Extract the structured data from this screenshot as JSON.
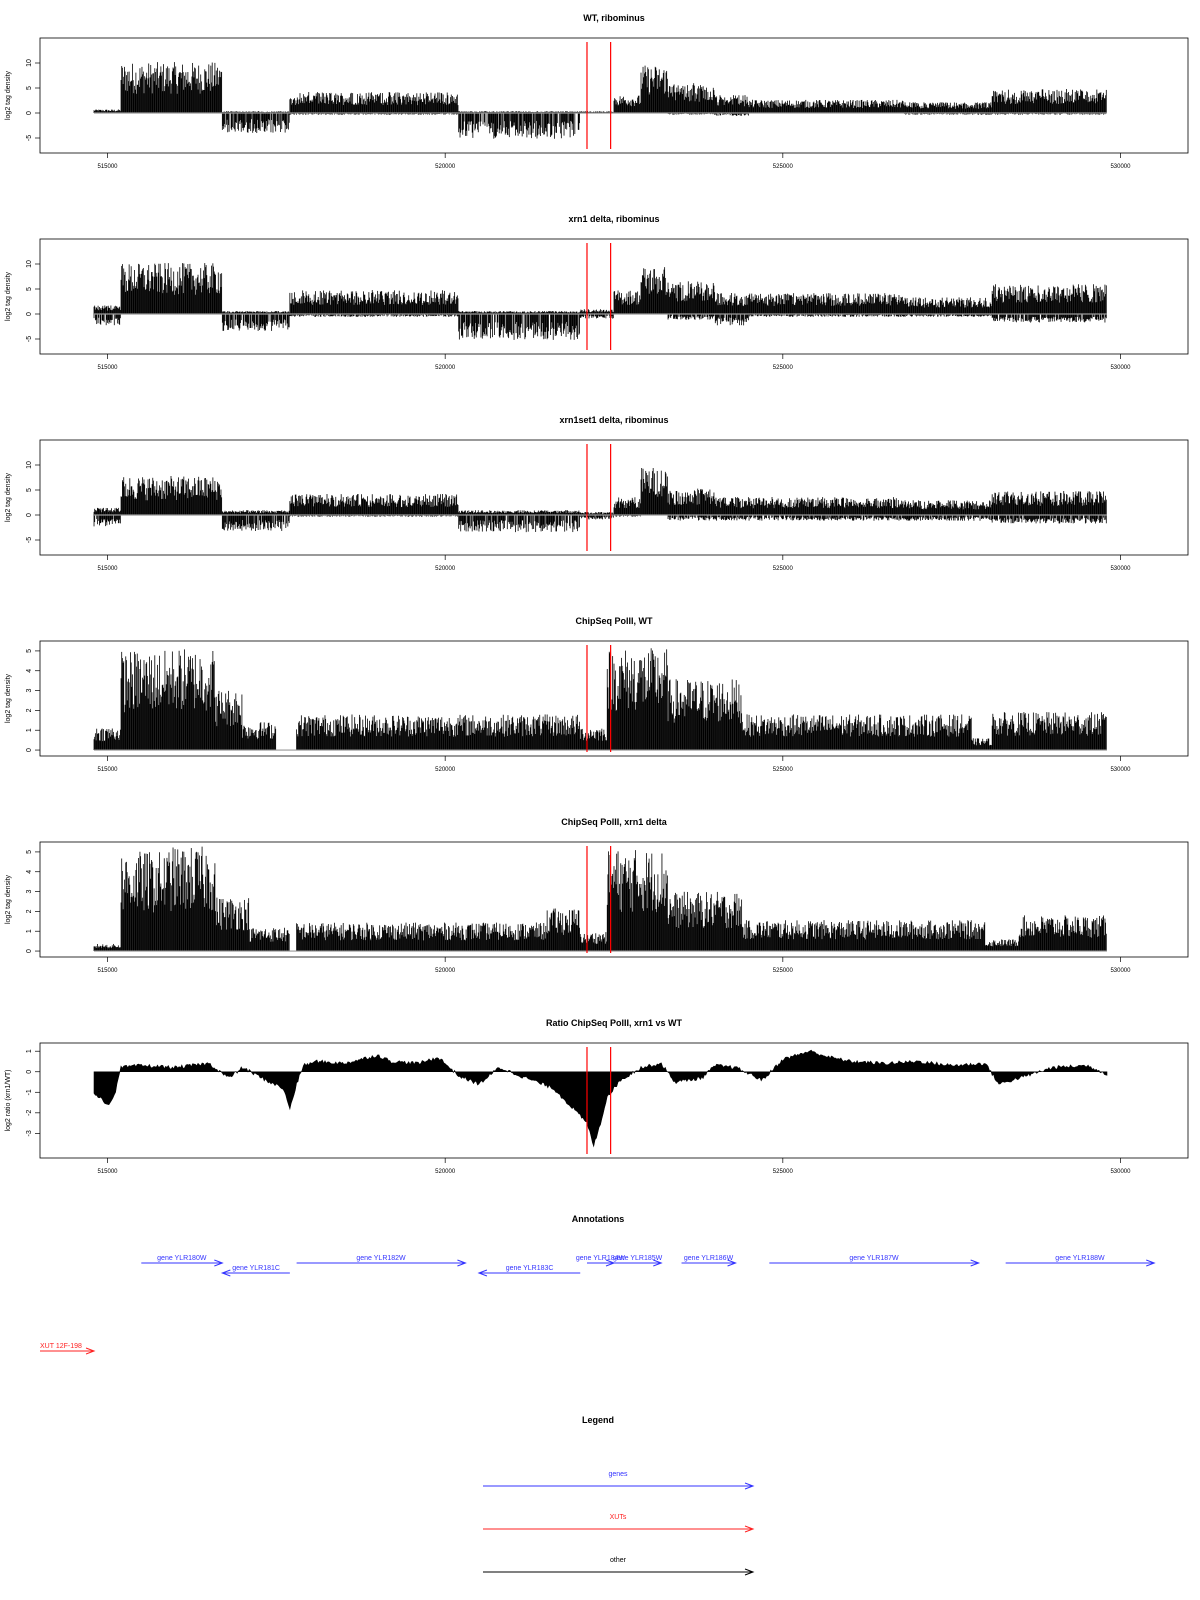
{
  "chart_data": [
    {
      "type": "bar",
      "title": "WT, ribominus",
      "ylabel": "log2 tag density",
      "xlim": [
        514000,
        531000
      ],
      "ylim": [
        -8,
        15
      ],
      "yticks": [
        -5,
        0,
        5,
        10
      ],
      "xticks": [
        515000,
        520000,
        525000,
        530000
      ],
      "xtick_labels": [
        "515000",
        "520000",
        "525000",
        "530000"
      ],
      "red_lines": [
        522100,
        522450
      ],
      "profile": [
        {
          "start": 514800,
          "end": 515200,
          "pos": 0.6,
          "neg": 0
        },
        {
          "start": 515200,
          "end": 516700,
          "pos": 8.5,
          "neg": 0
        },
        {
          "start": 516700,
          "end": 517700,
          "pos": 0.3,
          "neg": -3.5
        },
        {
          "start": 517700,
          "end": 520200,
          "pos": 3.5,
          "neg": -0.3
        },
        {
          "start": 520200,
          "end": 522000,
          "pos": 0.3,
          "neg": -4.5
        },
        {
          "start": 522000,
          "end": 522500,
          "pos": 0.3,
          "neg": 0
        },
        {
          "start": 522500,
          "end": 522900,
          "pos": 3,
          "neg": 0
        },
        {
          "start": 522900,
          "end": 523300,
          "pos": 8,
          "neg": 0
        },
        {
          "start": 523300,
          "end": 524000,
          "pos": 5,
          "neg": -0.3
        },
        {
          "start": 524000,
          "end": 524500,
          "pos": 3,
          "neg": -0.5
        },
        {
          "start": 524500,
          "end": 526800,
          "pos": 2.2,
          "neg": 0
        },
        {
          "start": 526800,
          "end": 528100,
          "pos": 1.8,
          "neg": -0.3
        },
        {
          "start": 528100,
          "end": 529800,
          "pos": 4,
          "neg": -0.3
        }
      ]
    },
    {
      "type": "bar",
      "title": "xrn1 delta, ribominus",
      "ylabel": "log2 tag density",
      "xlim": [
        514000,
        531000
      ],
      "ylim": [
        -8,
        15
      ],
      "yticks": [
        -5,
        0,
        5,
        10
      ],
      "xticks": [
        515000,
        520000,
        525000,
        530000
      ],
      "xtick_labels": [
        "515000",
        "520000",
        "525000",
        "530000"
      ],
      "red_lines": [
        522100,
        522450
      ],
      "profile": [
        {
          "start": 514800,
          "end": 515200,
          "pos": 1.5,
          "neg": -2
        },
        {
          "start": 515200,
          "end": 516700,
          "pos": 8.5,
          "neg": 0
        },
        {
          "start": 516700,
          "end": 517700,
          "pos": 0.5,
          "neg": -3
        },
        {
          "start": 517700,
          "end": 520200,
          "pos": 4,
          "neg": -0.5
        },
        {
          "start": 520200,
          "end": 522000,
          "pos": 0.5,
          "neg": -4.5
        },
        {
          "start": 522000,
          "end": 522500,
          "pos": 0.8,
          "neg": -0.8
        },
        {
          "start": 522500,
          "end": 522900,
          "pos": 4,
          "neg": 0
        },
        {
          "start": 522900,
          "end": 523300,
          "pos": 8,
          "neg": 0
        },
        {
          "start": 523300,
          "end": 524000,
          "pos": 5.5,
          "neg": -1
        },
        {
          "start": 524000,
          "end": 524500,
          "pos": 3.5,
          "neg": -2
        },
        {
          "start": 524500,
          "end": 526800,
          "pos": 3.5,
          "neg": -0.5
        },
        {
          "start": 526800,
          "end": 528100,
          "pos": 2.8,
          "neg": -0.5
        },
        {
          "start": 528100,
          "end": 529800,
          "pos": 5,
          "neg": -1.5
        }
      ]
    },
    {
      "type": "bar",
      "title": "xrn1set1 delta, ribominus",
      "ylabel": "log2 tag density",
      "xlim": [
        514000,
        531000
      ],
      "ylim": [
        -8,
        15
      ],
      "yticks": [
        -5,
        0,
        5,
        10
      ],
      "xticks": [
        515000,
        520000,
        525000,
        530000
      ],
      "xtick_labels": [
        "515000",
        "520000",
        "525000",
        "530000"
      ],
      "red_lines": [
        522100,
        522450
      ],
      "profile": [
        {
          "start": 514800,
          "end": 515200,
          "pos": 1.2,
          "neg": -2
        },
        {
          "start": 515200,
          "end": 516700,
          "pos": 6.5,
          "neg": 0
        },
        {
          "start": 516700,
          "end": 517700,
          "pos": 0.8,
          "neg": -2.8
        },
        {
          "start": 517700,
          "end": 520200,
          "pos": 3.5,
          "neg": -0.3
        },
        {
          "start": 520200,
          "end": 522000,
          "pos": 0.8,
          "neg": -3
        },
        {
          "start": 522000,
          "end": 522500,
          "pos": 0.5,
          "neg": -0.8
        },
        {
          "start": 522500,
          "end": 522900,
          "pos": 3,
          "neg": -0.3
        },
        {
          "start": 522900,
          "end": 523300,
          "pos": 8,
          "neg": 0
        },
        {
          "start": 523300,
          "end": 524000,
          "pos": 4.5,
          "neg": -1
        },
        {
          "start": 524000,
          "end": 524500,
          "pos": 3,
          "neg": -1
        },
        {
          "start": 524500,
          "end": 526800,
          "pos": 3,
          "neg": -1
        },
        {
          "start": 526800,
          "end": 528100,
          "pos": 2.5,
          "neg": -1
        },
        {
          "start": 528100,
          "end": 529800,
          "pos": 4,
          "neg": -1.5
        }
      ]
    },
    {
      "type": "bar",
      "title": "ChipSeq PolII, WT",
      "ylabel": "log2 tag density",
      "xlim": [
        514000,
        531000
      ],
      "ylim": [
        -0.3,
        5.5
      ],
      "yticks": [
        0,
        1,
        2,
        3,
        4,
        5
      ],
      "xticks": [
        515000,
        520000,
        525000,
        530000
      ],
      "xtick_labels": [
        "515000",
        "520000",
        "525000",
        "530000"
      ],
      "red_lines": [
        522100,
        522450
      ],
      "profile": [
        {
          "start": 514800,
          "end": 515200,
          "pos": 1,
          "neg": 0
        },
        {
          "start": 515200,
          "end": 515900,
          "pos": 4.2,
          "neg": 0
        },
        {
          "start": 515900,
          "end": 516600,
          "pos": 4.3,
          "neg": 0
        },
        {
          "start": 516600,
          "end": 517000,
          "pos": 2.6,
          "neg": 0
        },
        {
          "start": 517000,
          "end": 517500,
          "pos": 1.2,
          "neg": 0
        },
        {
          "start": 517500,
          "end": 517800,
          "pos": 0,
          "neg": 0
        },
        {
          "start": 517800,
          "end": 522000,
          "pos": 1.5,
          "neg": 0
        },
        {
          "start": 522000,
          "end": 522400,
          "pos": 1,
          "neg": 0
        },
        {
          "start": 522400,
          "end": 523300,
          "pos": 4.3,
          "neg": 0
        },
        {
          "start": 523300,
          "end": 524400,
          "pos": 3,
          "neg": 0
        },
        {
          "start": 524400,
          "end": 527800,
          "pos": 1.5,
          "neg": 0
        },
        {
          "start": 527800,
          "end": 528100,
          "pos": 0.5,
          "neg": 0
        },
        {
          "start": 528100,
          "end": 529800,
          "pos": 1.6,
          "neg": 0
        }
      ]
    },
    {
      "type": "bar",
      "title": "ChipSeq PolII, xrn1 delta",
      "ylabel": "log2 tag density",
      "xlim": [
        514000,
        531000
      ],
      "ylim": [
        -0.3,
        5.5
      ],
      "yticks": [
        0,
        1,
        2,
        3,
        4,
        5
      ],
      "xticks": [
        515000,
        520000,
        525000,
        530000
      ],
      "xtick_labels": [
        "515000",
        "520000",
        "525000",
        "530000"
      ],
      "red_lines": [
        522100,
        522450
      ],
      "profile": [
        {
          "start": 514800,
          "end": 515200,
          "pos": 0.3,
          "neg": 0
        },
        {
          "start": 515200,
          "end": 515900,
          "pos": 4.2,
          "neg": 0
        },
        {
          "start": 515900,
          "end": 516600,
          "pos": 4.4,
          "neg": 0
        },
        {
          "start": 516600,
          "end": 517100,
          "pos": 2.3,
          "neg": 0
        },
        {
          "start": 517100,
          "end": 517700,
          "pos": 1,
          "neg": 0
        },
        {
          "start": 517700,
          "end": 517800,
          "pos": 0,
          "neg": 0
        },
        {
          "start": 517800,
          "end": 521500,
          "pos": 1.2,
          "neg": 0
        },
        {
          "start": 521500,
          "end": 522000,
          "pos": 1.8,
          "neg": 0
        },
        {
          "start": 522000,
          "end": 522400,
          "pos": 0.8,
          "neg": 0
        },
        {
          "start": 522400,
          "end": 523300,
          "pos": 4.3,
          "neg": 0
        },
        {
          "start": 523300,
          "end": 524400,
          "pos": 2.5,
          "neg": 0
        },
        {
          "start": 524400,
          "end": 528000,
          "pos": 1.3,
          "neg": 0
        },
        {
          "start": 528000,
          "end": 528500,
          "pos": 0.5,
          "neg": 0
        },
        {
          "start": 528500,
          "end": 529800,
          "pos": 1.5,
          "neg": 0
        }
      ]
    },
    {
      "type": "area",
      "title": "Ratio ChipSeq PolII, xrn1 vs WT",
      "ylabel": "log2 ratio (xrn1/WT)",
      "xlim": [
        514000,
        531000
      ],
      "ylim": [
        -4.2,
        1.4
      ],
      "yticks": [
        -3,
        -2,
        -1,
        0,
        1
      ],
      "xticks": [
        515000,
        520000,
        525000,
        530000
      ],
      "xtick_labels": [
        "515000",
        "520000",
        "525000",
        "530000"
      ],
      "red_lines": [
        522100,
        522450
      ],
      "x": [
        514800,
        515000,
        515100,
        515200,
        515500,
        516000,
        516500,
        516800,
        517000,
        517400,
        517600,
        517700,
        517800,
        517900,
        518100,
        518500,
        519000,
        519200,
        519600,
        519900,
        520200,
        520500,
        520800,
        521200,
        521600,
        521900,
        522100,
        522200,
        522300,
        522400,
        522600,
        522900,
        523200,
        523400,
        523800,
        524000,
        524300,
        524700,
        525000,
        525400,
        525700,
        526000,
        526500,
        527000,
        527500,
        528000,
        528200,
        528600,
        529000,
        529500,
        529800
      ],
      "y": [
        -1.0,
        -1.6,
        -1.2,
        0.2,
        0.3,
        0.2,
        0.4,
        -0.3,
        0.2,
        -0.5,
        -0.8,
        -1.8,
        -0.6,
        0.3,
        0.5,
        0.4,
        0.8,
        0.5,
        0.4,
        0.7,
        -0.2,
        -0.6,
        0.2,
        -0.3,
        -0.8,
        -1.8,
        -2.5,
        -3.6,
        -2.5,
        -1.2,
        -0.4,
        0.2,
        0.4,
        -0.5,
        -0.3,
        0.3,
        0.2,
        -0.4,
        0.6,
        1.0,
        0.7,
        0.5,
        0.4,
        0.5,
        0.3,
        0.4,
        -0.6,
        -0.2,
        0.2,
        0.3,
        -0.1
      ]
    }
  ],
  "annotations": {
    "title": "Annotations",
    "genes": [
      {
        "label": "gene YLR180W",
        "start": 515500,
        "end": 516700,
        "strand": "+",
        "row": 0
      },
      {
        "label": "gene YLR181C",
        "start": 516700,
        "end": 517700,
        "strand": "-",
        "row": 1
      },
      {
        "label": "gene YLR182W",
        "start": 517800,
        "end": 520300,
        "strand": "+",
        "row": 0
      },
      {
        "label": "gene YLR183C",
        "start": 520500,
        "end": 522000,
        "strand": "-",
        "row": 1
      },
      {
        "label": "gene YLR184W",
        "start": 522100,
        "end": 522500,
        "strand": "+",
        "row": 0
      },
      {
        "label": "gene YLR185W",
        "start": 522500,
        "end": 523200,
        "strand": "+",
        "row": 0
      },
      {
        "label": "gene YLR186W",
        "start": 523500,
        "end": 524300,
        "strand": "+",
        "row": 0
      },
      {
        "label": "gene YLR187W",
        "start": 524800,
        "end": 527900,
        "strand": "+",
        "row": 0
      },
      {
        "label": "gene YLR188W",
        "start": 528300,
        "end": 530500,
        "strand": "+",
        "row": 0
      }
    ],
    "xuts": [
      {
        "label": "XUT 12F-198",
        "start": 514000,
        "end": 514800,
        "strand": "+"
      }
    ]
  },
  "legend": {
    "title": "Legend",
    "items": [
      {
        "label": "genes",
        "color": "#3333ff"
      },
      {
        "label": "XUTs",
        "color": "#ff2222"
      },
      {
        "label": "other",
        "color": "#000000"
      }
    ]
  },
  "colors": {
    "bars": "#000000",
    "baseline": "#999999",
    "marker": "#ff0000",
    "gene": "#3333ff",
    "xut": "#ff2222"
  }
}
